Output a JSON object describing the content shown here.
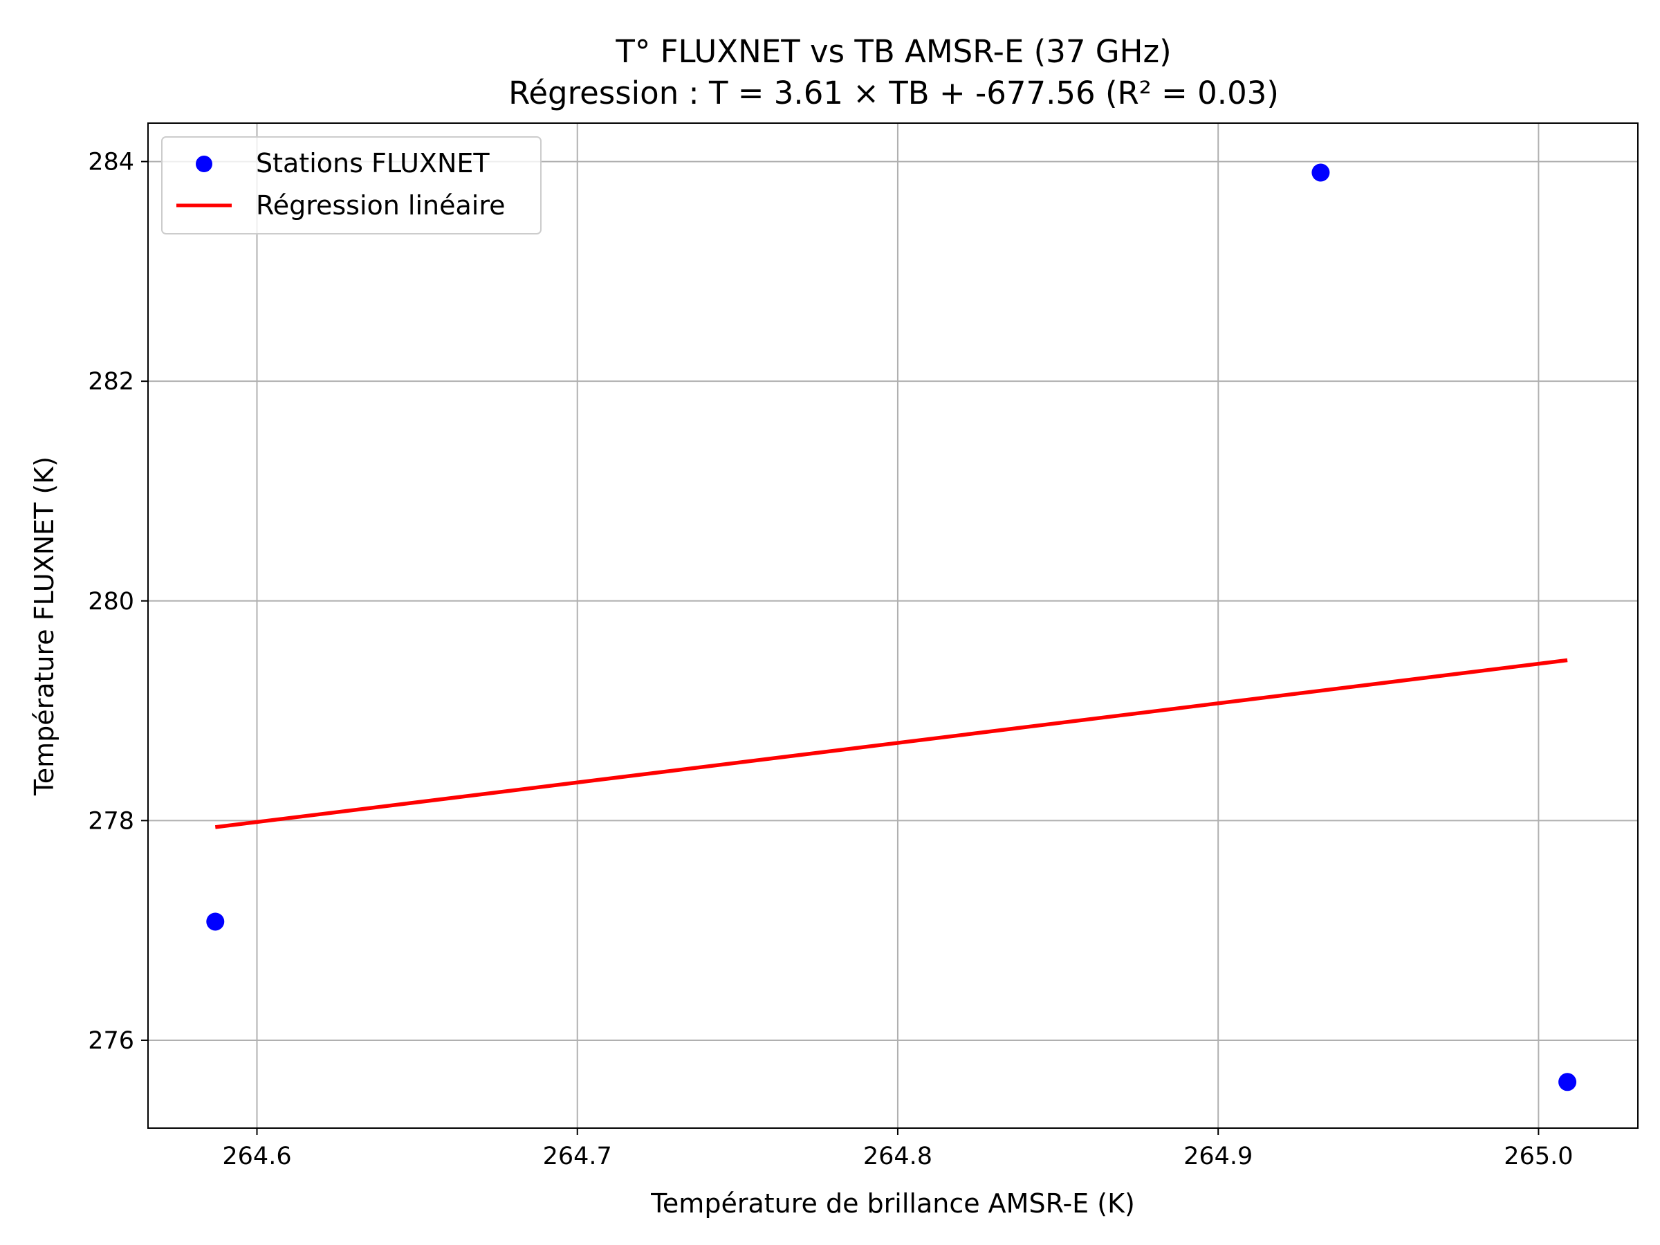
{
  "chart_data": {
    "type": "scatter",
    "title": "T° FLUXNET vs TB AMSR-E (37 GHz)",
    "subtitle": "Régression : T = 3.61 × TB + -677.56 (R² = 0.03)",
    "xlabel": "Température de brillance AMSR-E (K)",
    "ylabel": "Température FLUXNET (K)",
    "xlim": [
      264.566,
      265.031
    ],
    "ylim": [
      275.2,
      284.35
    ],
    "x_ticks": [
      264.6,
      264.7,
      264.8,
      264.9,
      265.0
    ],
    "x_tick_labels": [
      "264.6",
      "264.7",
      "264.8",
      "264.9",
      "265.0"
    ],
    "y_ticks": [
      276,
      278,
      280,
      282,
      284
    ],
    "y_tick_labels": [
      "276",
      "278",
      "280",
      "282",
      "284"
    ],
    "grid": true,
    "legend_position": "top-left",
    "series": [
      {
        "name": "Stations FLUXNET",
        "kind": "scatter",
        "color": "#0000ff",
        "x": [
          264.587,
          264.932,
          265.009
        ],
        "y": [
          277.08,
          283.9,
          275.62
        ]
      },
      {
        "name": "Régression linéaire",
        "kind": "line",
        "color": "#ff0000",
        "x": [
          264.587,
          265.009
        ],
        "y": [
          277.94,
          279.46
        ]
      }
    ]
  }
}
